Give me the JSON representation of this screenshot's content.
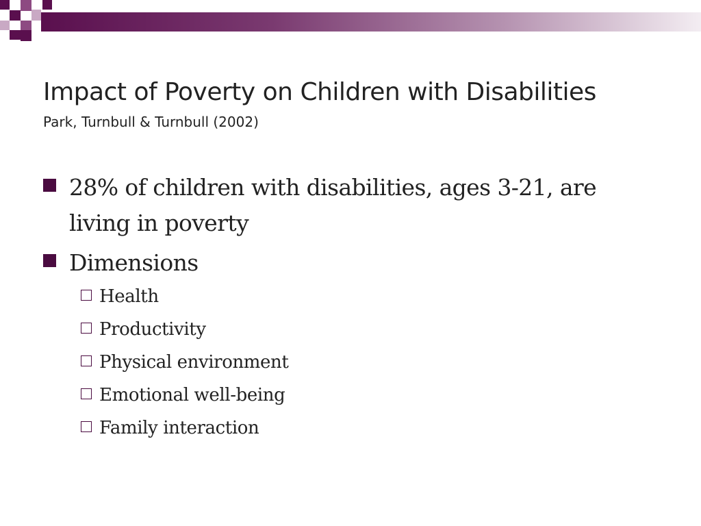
{
  "slide": {
    "title": "Impact of Poverty on Children with Disabilities",
    "subtitle": "Park, Turnbull & Turnbull (2002)",
    "bullets": [
      {
        "text": "28%  of children with disabilities, ages 3-21, are living in poverty",
        "icon": "square-bullet-icon"
      },
      {
        "text": "Dimensions",
        "icon": "square-bullet-icon",
        "sub_items": [
          "Health",
          "Productivity",
          "Physical environment",
          "Emotional well-being",
          "Family interaction"
        ]
      }
    ]
  },
  "colors": {
    "accent": "#5a0f4e",
    "text": "#222222",
    "background": "#ffffff"
  }
}
